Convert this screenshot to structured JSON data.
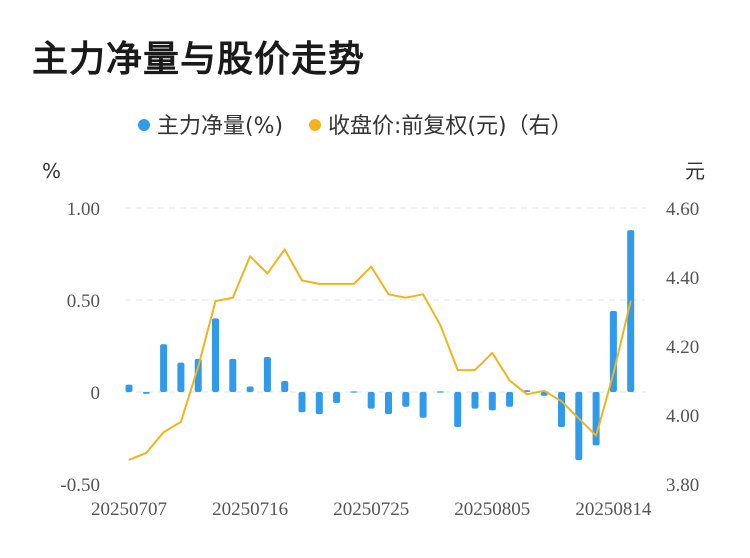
{
  "title": "主力净量与股价走势",
  "chart_data": {
    "type": "bar+line",
    "legend": [
      {
        "label": "主力净量(%)",
        "color": "#2f9bea"
      },
      {
        "label": "收盘价:前复权(元)（右）",
        "color": "#f2b31b"
      }
    ],
    "left_unit": "%",
    "right_unit": "元",
    "left_ticks": [
      "1.00",
      "0.50",
      "0",
      "-0.50"
    ],
    "right_ticks": [
      "4.60",
      "4.40",
      "4.20",
      "4.00",
      "3.80"
    ],
    "left_ylim": [
      -0.5,
      1.0
    ],
    "right_ylim": [
      3.8,
      4.6
    ],
    "x_tick_labels": [
      "20250707",
      "20250716",
      "20250725",
      "20250805",
      "20250814"
    ],
    "grid": "horizontal-dashed",
    "series": [
      {
        "name": "主力净量(%)",
        "axis": "left",
        "values": [
          0.04,
          -0.01,
          0.26,
          0.16,
          0.18,
          0.4,
          0.18,
          0.03,
          0.19,
          0.06,
          -0.11,
          -0.12,
          -0.06,
          0.0,
          -0.09,
          -0.12,
          -0.08,
          -0.14,
          -0.0,
          -0.19,
          -0.09,
          -0.1,
          -0.08,
          0.01,
          -0.02,
          -0.19,
          -0.37,
          -0.29,
          0.44,
          0.88
        ]
      },
      {
        "name": "收盘价:前复权(元)（右）",
        "axis": "right",
        "values": [
          3.87,
          3.89,
          3.95,
          3.98,
          4.14,
          4.33,
          4.34,
          4.46,
          4.41,
          4.48,
          4.39,
          4.38,
          4.38,
          4.38,
          4.43,
          4.35,
          4.34,
          4.35,
          4.26,
          4.13,
          4.13,
          4.18,
          4.1,
          4.06,
          4.07,
          4.04,
          3.99,
          3.94,
          4.12,
          4.33
        ]
      }
    ]
  }
}
